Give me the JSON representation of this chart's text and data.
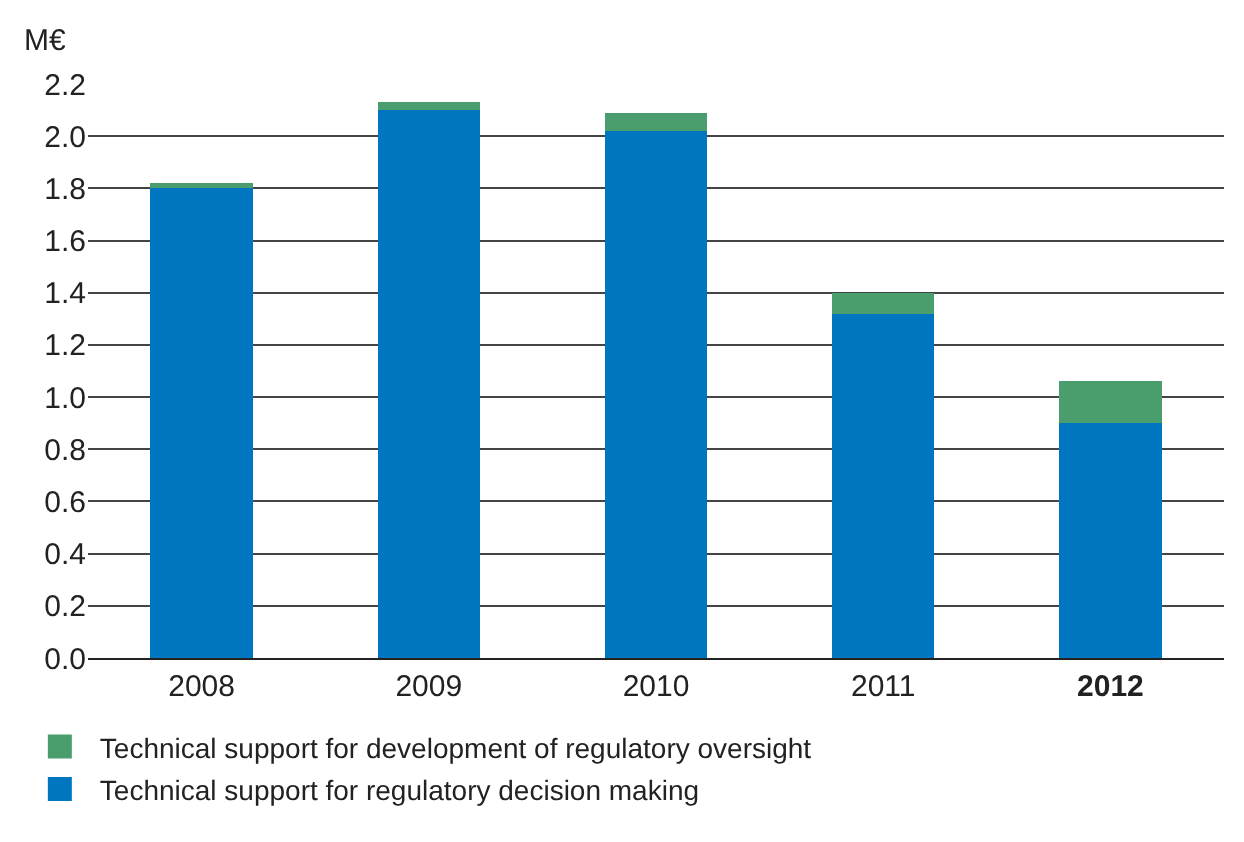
{
  "chart_data": {
    "type": "bar",
    "stacked": true,
    "ylabel": "M€",
    "categories": [
      "2008",
      "2009",
      "2010",
      "2011",
      "2012"
    ],
    "series": [
      {
        "name": "Technical support for regulatory decision making",
        "color": "#0076c0",
        "values": [
          1.8,
          2.1,
          2.02,
          1.32,
          0.9
        ]
      },
      {
        "name": "Technical support for development of regulatory oversight",
        "color": "#4a9e6e",
        "values": [
          0.02,
          0.03,
          0.07,
          0.08,
          0.16
        ]
      }
    ],
    "ylim": [
      0,
      2.2
    ],
    "yticks": [
      {
        "value": 0,
        "label": "0.0"
      },
      0.2,
      0.4,
      0.6,
      0.8,
      {
        "value": 1,
        "label": "1.0"
      },
      1.2,
      1.4,
      1.6,
      1.8,
      {
        "value": 2,
        "label": "2.0"
      },
      2.2
    ],
    "grid": "y",
    "legend": "bottom left"
  }
}
